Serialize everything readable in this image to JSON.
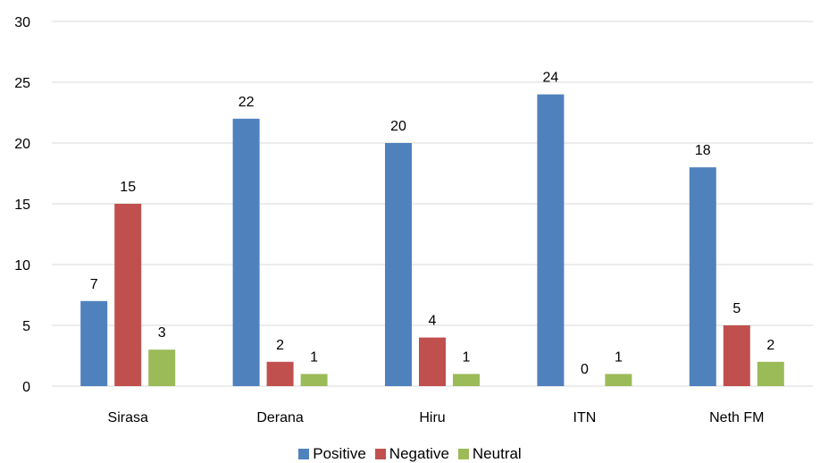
{
  "chart_data": {
    "type": "bar",
    "title": "",
    "xlabel": "",
    "ylabel": "",
    "categories": [
      "Sirasa",
      "Derana",
      "Hiru",
      "ITN",
      "Neth FM"
    ],
    "series": [
      {
        "name": "Positive",
        "color": "#4F81BD",
        "values": [
          7,
          22,
          20,
          24,
          18
        ]
      },
      {
        "name": "Negative",
        "color": "#C0504D",
        "values": [
          15,
          2,
          4,
          0,
          5
        ]
      },
      {
        "name": "Neutral",
        "color": "#9BBB59",
        "values": [
          3,
          1,
          1,
          1,
          2
        ]
      }
    ],
    "ylim": [
      0,
      30
    ],
    "yticks": [
      0,
      5,
      10,
      15,
      20,
      25,
      30
    ],
    "grid": true,
    "legend_position": "bottom"
  }
}
